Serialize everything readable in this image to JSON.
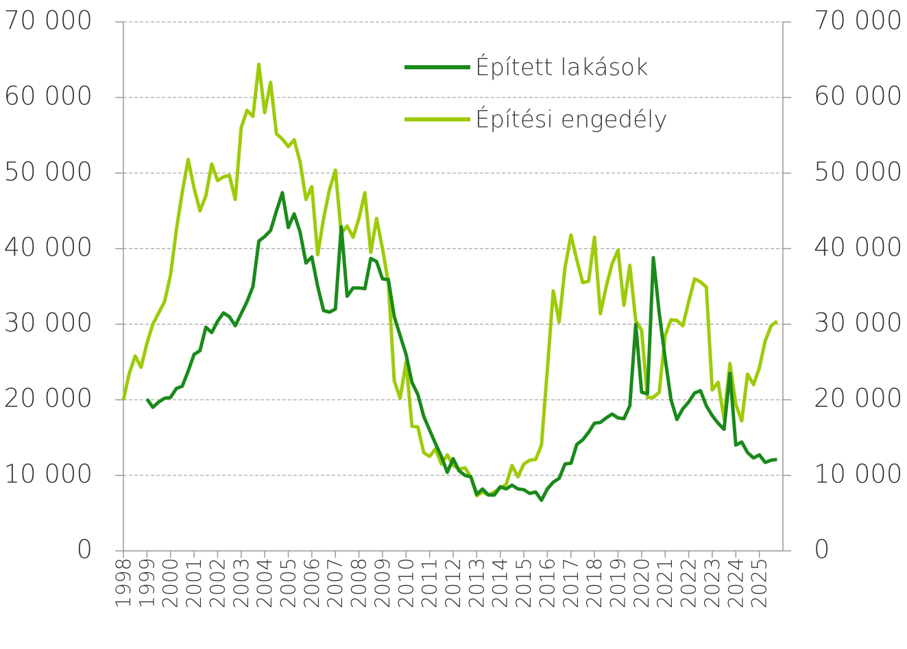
{
  "chart_data": {
    "type": "line",
    "x": [
      1998,
      1998.25,
      1998.5,
      1998.75,
      1999,
      1999.25,
      1999.5,
      1999.75,
      2000,
      2000.25,
      2000.5,
      2000.75,
      2001,
      2001.25,
      2001.5,
      2001.75,
      2002,
      2002.25,
      2002.5,
      2002.75,
      2003,
      2003.25,
      2003.5,
      2003.75,
      2004,
      2004.25,
      2004.5,
      2004.75,
      2005,
      2005.25,
      2005.5,
      2005.75,
      2006,
      2006.25,
      2006.5,
      2006.75,
      2007,
      2007.25,
      2007.5,
      2007.75,
      2008,
      2008.25,
      2008.5,
      2008.75,
      2009,
      2009.25,
      2009.5,
      2009.75,
      2010,
      2010.25,
      2010.5,
      2010.75,
      2011,
      2011.25,
      2011.5,
      2011.75,
      2012,
      2012.25,
      2012.5,
      2012.75,
      2013,
      2013.25,
      2013.5,
      2013.75,
      2014,
      2014.25,
      2014.5,
      2014.75,
      2015,
      2015.25,
      2015.5,
      2015.75,
      2016,
      2016.25,
      2016.5,
      2016.75,
      2017,
      2017.25,
      2017.5,
      2017.75,
      2018,
      2018.25,
      2018.5,
      2018.75,
      2019,
      2019.25,
      2019.5,
      2019.75,
      2020,
      2020.25,
      2020.5,
      2020.75,
      2021,
      2021.25,
      2021.5,
      2021.75,
      2022,
      2022.25,
      2022.5,
      2022.75,
      2023,
      2023.25,
      2023.5,
      2023.75,
      2024,
      2024.25,
      2024.5,
      2024.75,
      2025,
      2025.25,
      2025.5,
      2025.75
    ],
    "series": [
      {
        "name": "Épített lakások",
        "color": "#1a8a1a",
        "values": [
          null,
          null,
          null,
          null,
          20100,
          19000,
          19700,
          20200,
          20300,
          21500,
          21800,
          23800,
          26000,
          26500,
          29600,
          28900,
          30400,
          31500,
          31000,
          29800,
          31400,
          33000,
          35000,
          41000,
          41600,
          42400,
          45000,
          47400,
          42800,
          44600,
          42200,
          38100,
          38900,
          35000,
          31800,
          31600,
          32000,
          42900,
          33700,
          34800,
          34800,
          34700,
          38700,
          38300,
          36000,
          35900,
          31000,
          28500,
          26000,
          22300,
          20700,
          17800,
          16000,
          14200,
          12500,
          10400,
          12200,
          10600,
          10000,
          9800,
          7500,
          8200,
          7400,
          7400,
          8500,
          8200,
          8700,
          8200,
          8100,
          7600,
          7800,
          6700,
          8200,
          9100,
          9600,
          11500,
          11600,
          14100,
          14700,
          15700,
          16900,
          17000,
          17600,
          18100,
          17600,
          17500,
          19200,
          30000,
          21000,
          20800,
          38800,
          31500,
          25500,
          20000,
          17400,
          18800,
          19700,
          20900,
          21200,
          19200,
          17900,
          16900,
          16100,
          23500,
          14000,
          14400,
          13000,
          12300,
          12700,
          11700,
          12000,
          12100
        ]
      },
      {
        "name": "Építési engedély",
        "color": "#9dcb0a",
        "values": [
          20000,
          23500,
          25800,
          24300,
          27500,
          30000,
          31500,
          33000,
          36500,
          42500,
          47500,
          51800,
          48000,
          45000,
          47000,
          51200,
          49000,
          49500,
          49700,
          46500,
          56000,
          58300,
          57500,
          64400,
          58000,
          62000,
          55200,
          54500,
          53500,
          54400,
          51500,
          46500,
          48200,
          39200,
          44000,
          47800,
          50400,
          42000,
          43000,
          41500,
          44000,
          47400,
          39500,
          44000,
          40000,
          35500,
          22500,
          20200,
          25000,
          16500,
          16400,
          13000,
          12500,
          13500,
          11500,
          12700,
          11300,
          10800,
          11000,
          9800,
          7300,
          7800,
          7400,
          7800,
          8300,
          8800,
          11300,
          9800,
          11500,
          12000,
          12100,
          14000,
          24000,
          34400,
          30300,
          37500,
          41800,
          38500,
          35500,
          35700,
          41500,
          31400,
          35000,
          38000,
          39800,
          32500,
          37800,
          30500,
          29200,
          20300,
          20300,
          21000,
          28500,
          30600,
          30500,
          29800,
          33000,
          36000,
          35600,
          34900,
          21300,
          22300,
          17500,
          24800,
          19400,
          17200,
          23400,
          22000,
          24200,
          27800,
          29800,
          30400
        ]
      }
    ],
    "xlim": [
      1998,
      2026
    ],
    "xticks": [
      1998,
      1999,
      2000,
      2001,
      2002,
      2003,
      2004,
      2005,
      2006,
      2007,
      2008,
      2009,
      2010,
      2011,
      2012,
      2013,
      2014,
      2015,
      2016,
      2017,
      2018,
      2019,
      2020,
      2021,
      2022,
      2023,
      2024,
      2025
    ],
    "ylim": [
      0,
      70000
    ],
    "yticks": [
      0,
      {
        "value": 10000,
        "label": "10 000"
      },
      {
        "value": 20000,
        "label": "20 000"
      },
      {
        "value": 30000,
        "label": "30 000"
      },
      {
        "value": 40000,
        "label": "40 000"
      },
      {
        "value": 50000,
        "label": "50 000"
      },
      {
        "value": 60000,
        "label": "60 000"
      },
      {
        "value": 70000,
        "label": "70 000"
      }
    ],
    "y2lim": [
      0,
      70000
    ],
    "y2ticks": [
      0,
      {
        "value": 10000,
        "label": "10 000"
      },
      {
        "value": 20000,
        "label": "20 000"
      },
      {
        "value": 30000,
        "label": "30 000"
      },
      {
        "value": 40000,
        "label": "40 000"
      },
      {
        "value": 50000,
        "label": "50 000"
      },
      {
        "value": 60000,
        "label": "60 000"
      },
      {
        "value": 70000,
        "label": "70 000"
      }
    ],
    "grid": true,
    "legend": "top"
  }
}
